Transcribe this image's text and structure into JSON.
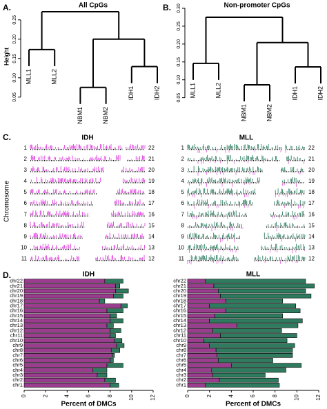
{
  "chart_data": [
    {
      "type": "dendrogram",
      "panel": "A.",
      "title": "All CpGs",
      "ylabel": "Height",
      "color": "#000000",
      "ylim": [
        0.03,
        0.28
      ],
      "yticks": [
        0.05,
        {
          "value": 0.1,
          "label": "0.10"
        },
        0.15,
        {
          "value": 0.2,
          "label": "0.20"
        },
        0.25
      ],
      "tree": {
        "height": 0.271,
        "children": [
          {
            "height": 0.173,
            "children": [
              "MLL1",
              "MLL2"
            ]
          },
          {
            "height": 0.2,
            "children": [
              {
                "height": 0.075,
                "children": [
                  "NBM1",
                  "NBM2"
                ]
              },
              {
                "height": 0.129,
                "children": [
                  "IDH1",
                  "IDH2"
                ]
              }
            ]
          }
        ]
      }
    },
    {
      "type": "dendrogram",
      "panel": "B.",
      "title": "Non-promoter CpGs",
      "ylabel": "Height",
      "color": "#000000",
      "ylim": [
        0.03,
        0.3
      ],
      "yticks": [
        0.05,
        {
          "value": 0.1,
          "label": "0.10"
        },
        0.15,
        {
          "value": 0.2,
          "label": "0.20"
        },
        0.25,
        {
          "value": 0.3,
          "label": "0.30"
        }
      ],
      "tree": {
        "height": 0.275,
        "children": [
          {
            "height": 0.146,
            "children": [
              "MLL1",
              "MLL2"
            ]
          },
          {
            "height": 0.204,
            "children": [
              {
                "height": 0.086,
                "children": [
                  "NBM1",
                  "NBM2"
                ]
              },
              {
                "height": 0.136,
                "children": [
                  "IDH1",
                  "IDH2"
                ]
              }
            ]
          }
        ]
      }
    },
    {
      "type": "ideogram",
      "panel": "C.",
      "title": "IDH",
      "ylabel": "Chromosome",
      "color": "#e03de0",
      "left_labels": [
        "1",
        "2",
        "3",
        "4",
        "5",
        "6",
        "7",
        "8",
        "9",
        "10",
        "11"
      ],
      "right_labels": [
        "22",
        "21",
        "20",
        "19",
        "18",
        "17",
        "16",
        "15",
        "14",
        "13",
        "12"
      ]
    },
    {
      "type": "ideogram",
      "title": "MLL",
      "color": "#2f7f62",
      "left_labels": [
        "1",
        "2",
        "3",
        "4",
        "5",
        "6",
        "7",
        "8",
        "9",
        "10",
        "11"
      ],
      "right_labels": [
        "22",
        "21",
        "20",
        "19",
        "18",
        "17",
        "16",
        "15",
        "14",
        "13",
        "12"
      ]
    },
    {
      "type": "stacked_barh",
      "panel": "D.",
      "title": "IDH",
      "xlabel": "Percent of DMCs",
      "categories": [
        "chr1",
        "chr2",
        "chr3",
        "chr4",
        "chr5",
        "chr6",
        "chr7",
        "chr8",
        "chr9",
        "chr10",
        "chr11",
        "chr12",
        "chr13",
        "chr14",
        "chr15",
        "chr16",
        "chr17",
        "chr18",
        "chr19",
        "chr20",
        "chr21",
        "chr22"
      ],
      "series": [
        {
          "color": "#9b3d8f",
          "values": [
            8.0,
            7.5,
            6.8,
            6.4,
            7.7,
            8.0,
            8.2,
            8.1,
            8.6,
            8.4,
            8.0,
            8.0,
            7.7,
            8.0,
            8.0,
            7.7,
            9.0,
            7.0,
            8.3,
            8.5,
            8.5,
            7.5
          ]
        },
        {
          "color": "#2e7b5f",
          "values": [
            0.8,
            1.0,
            0.9,
            1.3,
            1.5,
            0.3,
            0.2,
            0.8,
            0.7,
            0.7,
            0.5,
            1.0,
            0.6,
            1.2,
            0.6,
            1.5,
            0.6,
            0.5,
            0.9,
            1.2,
            0.4,
            1.7
          ]
        }
      ],
      "xlim": [
        0,
        12
      ],
      "xticks": [
        0,
        2,
        4,
        6,
        8,
        10,
        12
      ]
    },
    {
      "type": "stacked_barh",
      "title": "MLL",
      "xlabel": "Percent of DMCs",
      "categories": [
        "chr1",
        "chr2",
        "chr3",
        "chr4",
        "chr5",
        "chr6",
        "chr7",
        "chr8",
        "chr9",
        "chr10",
        "chr11",
        "chr12",
        "chr13",
        "chr14",
        "chr15",
        "chr16",
        "chr17",
        "chr18",
        "chr19",
        "chr20",
        "chr21",
        "chr22"
      ],
      "series": [
        {
          "color": "#9b3d8f",
          "values": [
            1.6,
            2.9,
            2.3,
            2.2,
            4.0,
            2.8,
            2.7,
            2.6,
            2.0,
            1.5,
            3.0,
            2.3,
            4.5,
            2.0,
            2.5,
            3.5,
            2.0,
            3.5,
            3.0,
            2.8,
            2.4,
            1.6
          ]
        },
        {
          "color": "#2e7b5f",
          "values": [
            6.8,
            5.4,
            4.8,
            6.8,
            6.4,
            5.0,
            6.9,
            7.0,
            7.8,
            7.6,
            7.0,
            6.3,
            5.6,
            8.5,
            6.2,
            6.8,
            7.9,
            5.2,
            8.3,
            8.0,
            9.2,
            9.2
          ]
        }
      ],
      "xlim": [
        0,
        12
      ],
      "xticks": [
        0,
        2,
        4,
        6,
        8,
        10,
        12
      ]
    }
  ]
}
